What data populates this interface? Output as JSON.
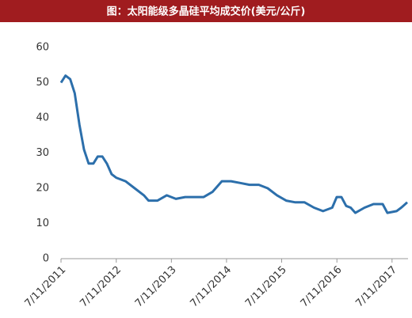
{
  "chart_data": {
    "type": "line",
    "title": "图：太阳能级多晶硅平均成交价(美元/公斤)",
    "x": [
      "2011-07-11",
      "2011-08-10",
      "2011-09-10",
      "2011-10-10",
      "2011-11-10",
      "2011-12-10",
      "2012-01-10",
      "2012-02-10",
      "2012-03-10",
      "2012-04-10",
      "2012-05-10",
      "2012-06-10",
      "2012-07-10",
      "2012-09-10",
      "2012-11-10",
      "2013-01-10",
      "2013-02-10",
      "2013-04-10",
      "2013-06-10",
      "2013-08-10",
      "2013-10-10",
      "2013-12-10",
      "2014-02-10",
      "2014-04-10",
      "2014-06-10",
      "2014-08-10",
      "2014-10-10",
      "2014-12-10",
      "2015-02-10",
      "2015-04-10",
      "2015-06-10",
      "2015-08-10",
      "2015-10-10",
      "2015-12-10",
      "2016-02-10",
      "2016-04-10",
      "2016-06-10",
      "2016-07-10",
      "2016-08-10",
      "2016-09-10",
      "2016-10-10",
      "2016-11-10",
      "2017-01-10",
      "2017-03-10",
      "2017-05-10",
      "2017-06-10",
      "2017-08-10",
      "2017-09-10",
      "2017-10-20"
    ],
    "series": [
      {
        "name": "多晶硅平均成交价",
        "color": "#2c6fab",
        "values": [
          50,
          52,
          51,
          47,
          38,
          31,
          27,
          27,
          29,
          29,
          27,
          24,
          23,
          22,
          20,
          18,
          16.5,
          16.5,
          18,
          17,
          17.5,
          17.5,
          17.5,
          19,
          22,
          22,
          21.5,
          21,
          21,
          20,
          18,
          16.5,
          16,
          16,
          14.5,
          13.5,
          14.5,
          17.5,
          17.5,
          15,
          14.5,
          13,
          14.5,
          15.5,
          15.5,
          13,
          13.5,
          14.5,
          16
        ]
      }
    ],
    "xlim": [
      "2011-07-11",
      "2017-10-25"
    ],
    "xticks": [
      {
        "value": "2011-07-11",
        "label": "7/11/2011"
      },
      {
        "value": "2012-07-11",
        "label": "7/11/2012"
      },
      {
        "value": "2013-07-11",
        "label": "7/11/2013"
      },
      {
        "value": "2014-07-11",
        "label": "7/11/2014"
      },
      {
        "value": "2015-07-11",
        "label": "7/11/2015"
      },
      {
        "value": "2016-07-11",
        "label": "7/11/2016"
      },
      {
        "value": "2017-07-11",
        "label": "7/11/2017"
      }
    ],
    "ylim": [
      0,
      60
    ],
    "yticks": [
      0,
      10,
      20,
      30,
      40,
      50,
      60
    ]
  }
}
